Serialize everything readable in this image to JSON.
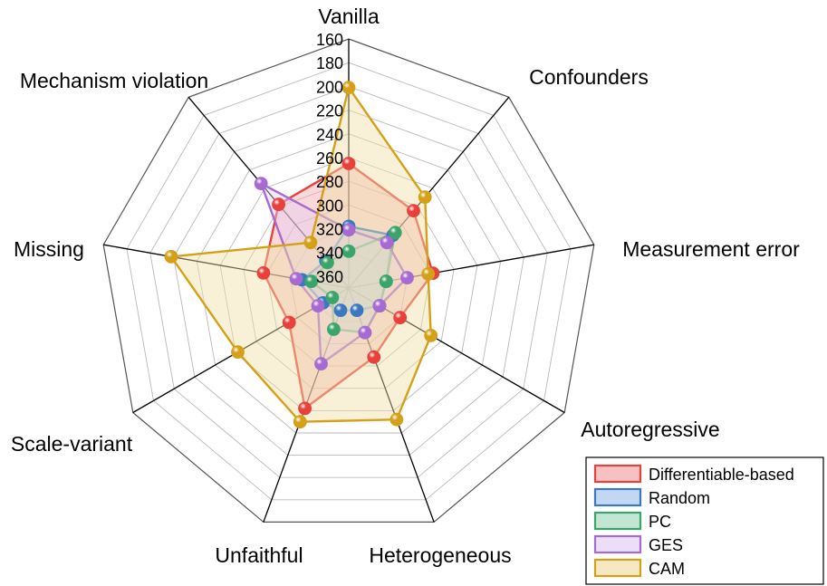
{
  "chart_data": {
    "type": "radar",
    "categories": [
      "Vanilla",
      "Confounders",
      "Measurement error",
      "Autoregressive",
      "Heterogeneous",
      "Unfaithful",
      "Scale-variant",
      "Missing",
      "Mechanism violation"
    ],
    "r_ticks": [
      "160",
      "180",
      "200",
      "220",
      "240",
      "260",
      "280",
      "300",
      "320",
      "340",
      "360"
    ],
    "r_range": [
      370,
      160
    ],
    "series": [
      {
        "name": "Differentiable-based",
        "color": "#e8413c",
        "fill": "#f4a6a8",
        "values": [
          265,
          285,
          298,
          320,
          308,
          262,
          312,
          297,
          278
        ]
      },
      {
        "name": "Random",
        "color": "#3a78c2",
        "fill": "#a9c6ee",
        "values": [
          318,
          312,
          338,
          340,
          350,
          350,
          345,
          330,
          340
        ]
      },
      {
        "name": "PC",
        "color": "#3aa56a",
        "fill": "#a8dcc0",
        "values": [
          339,
          309,
          338,
          340,
          330,
          333,
          354,
          338,
          342
        ]
      },
      {
        "name": "GES",
        "color": "#a66ad0",
        "fill": "#e4d0f3",
        "values": [
          321,
          320,
          320,
          340,
          330,
          302,
          340,
          325,
          255
        ]
      },
      {
        "name": "CAM",
        "color": "#d4a017",
        "fill": "#f0dfa8",
        "values": [
          201,
          270,
          302,
          290,
          252,
          250,
          262,
          218,
          320
        ]
      }
    ],
    "legend_position": "bottom-right",
    "grid": true
  }
}
